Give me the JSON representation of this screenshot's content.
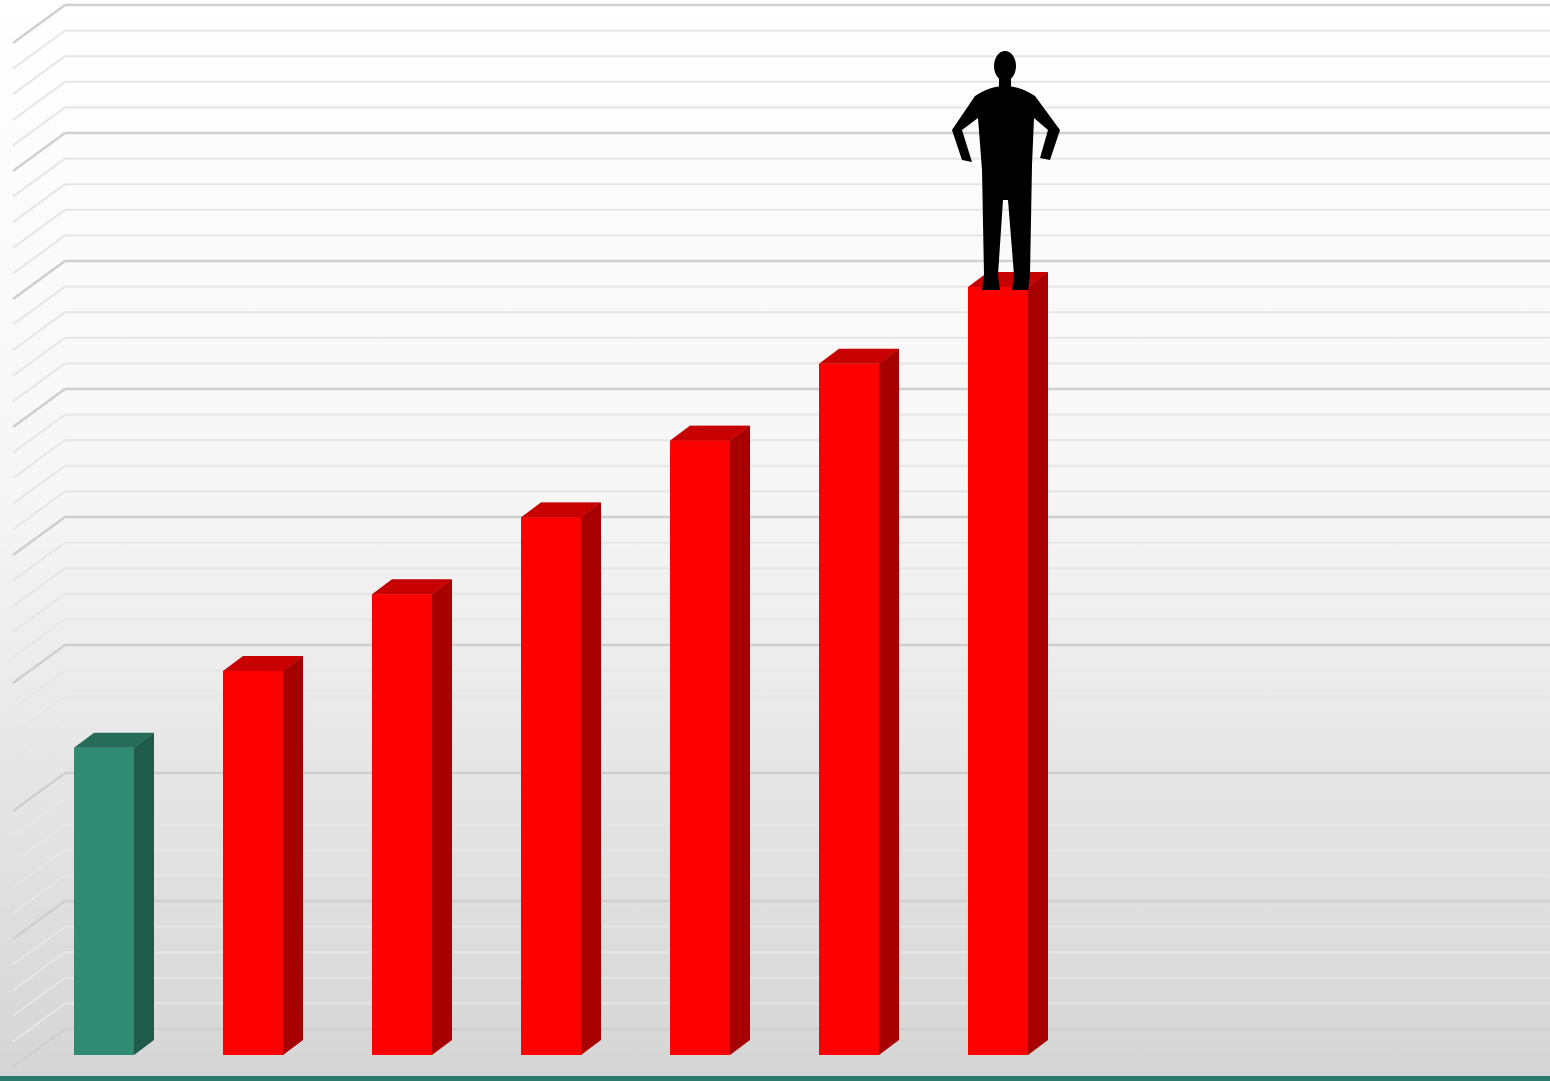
{
  "chart_data": {
    "type": "bar3d",
    "values": [
      12,
      15,
      18,
      21,
      24,
      27,
      30
    ],
    "colors": [
      "#318a72",
      "#ff0000",
      "#ff0000",
      "#ff0000",
      "#ff0000",
      "#ff0000",
      "#ff0000"
    ],
    "ylim": [
      0,
      40
    ],
    "yticks": [
      0,
      5,
      10,
      15,
      20,
      25,
      30,
      35,
      40
    ],
    "minor_yticks": [
      1,
      2,
      3,
      4,
      6,
      7,
      8,
      9,
      11,
      12,
      13,
      14,
      16,
      17,
      18,
      19,
      21,
      22,
      23,
      24,
      26,
      27,
      28,
      29,
      31,
      32,
      33,
      34,
      36,
      37,
      38,
      39
    ],
    "grid": true
  }
}
